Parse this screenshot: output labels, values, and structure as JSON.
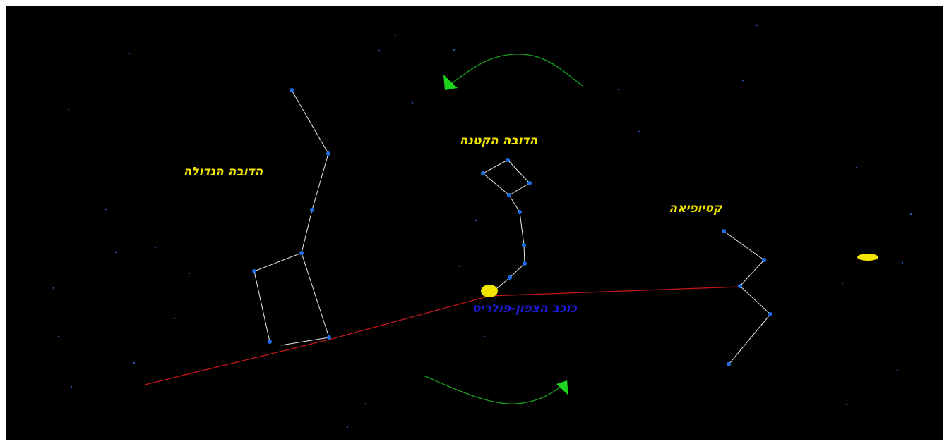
{
  "labels": {
    "big_dipper": "הדובה הגדולה",
    "little_dipper": "הדובה הקטנה",
    "cassiopeia": "קסיופיאה",
    "polaris": "כוכב הצפון-פולריס"
  }
}
